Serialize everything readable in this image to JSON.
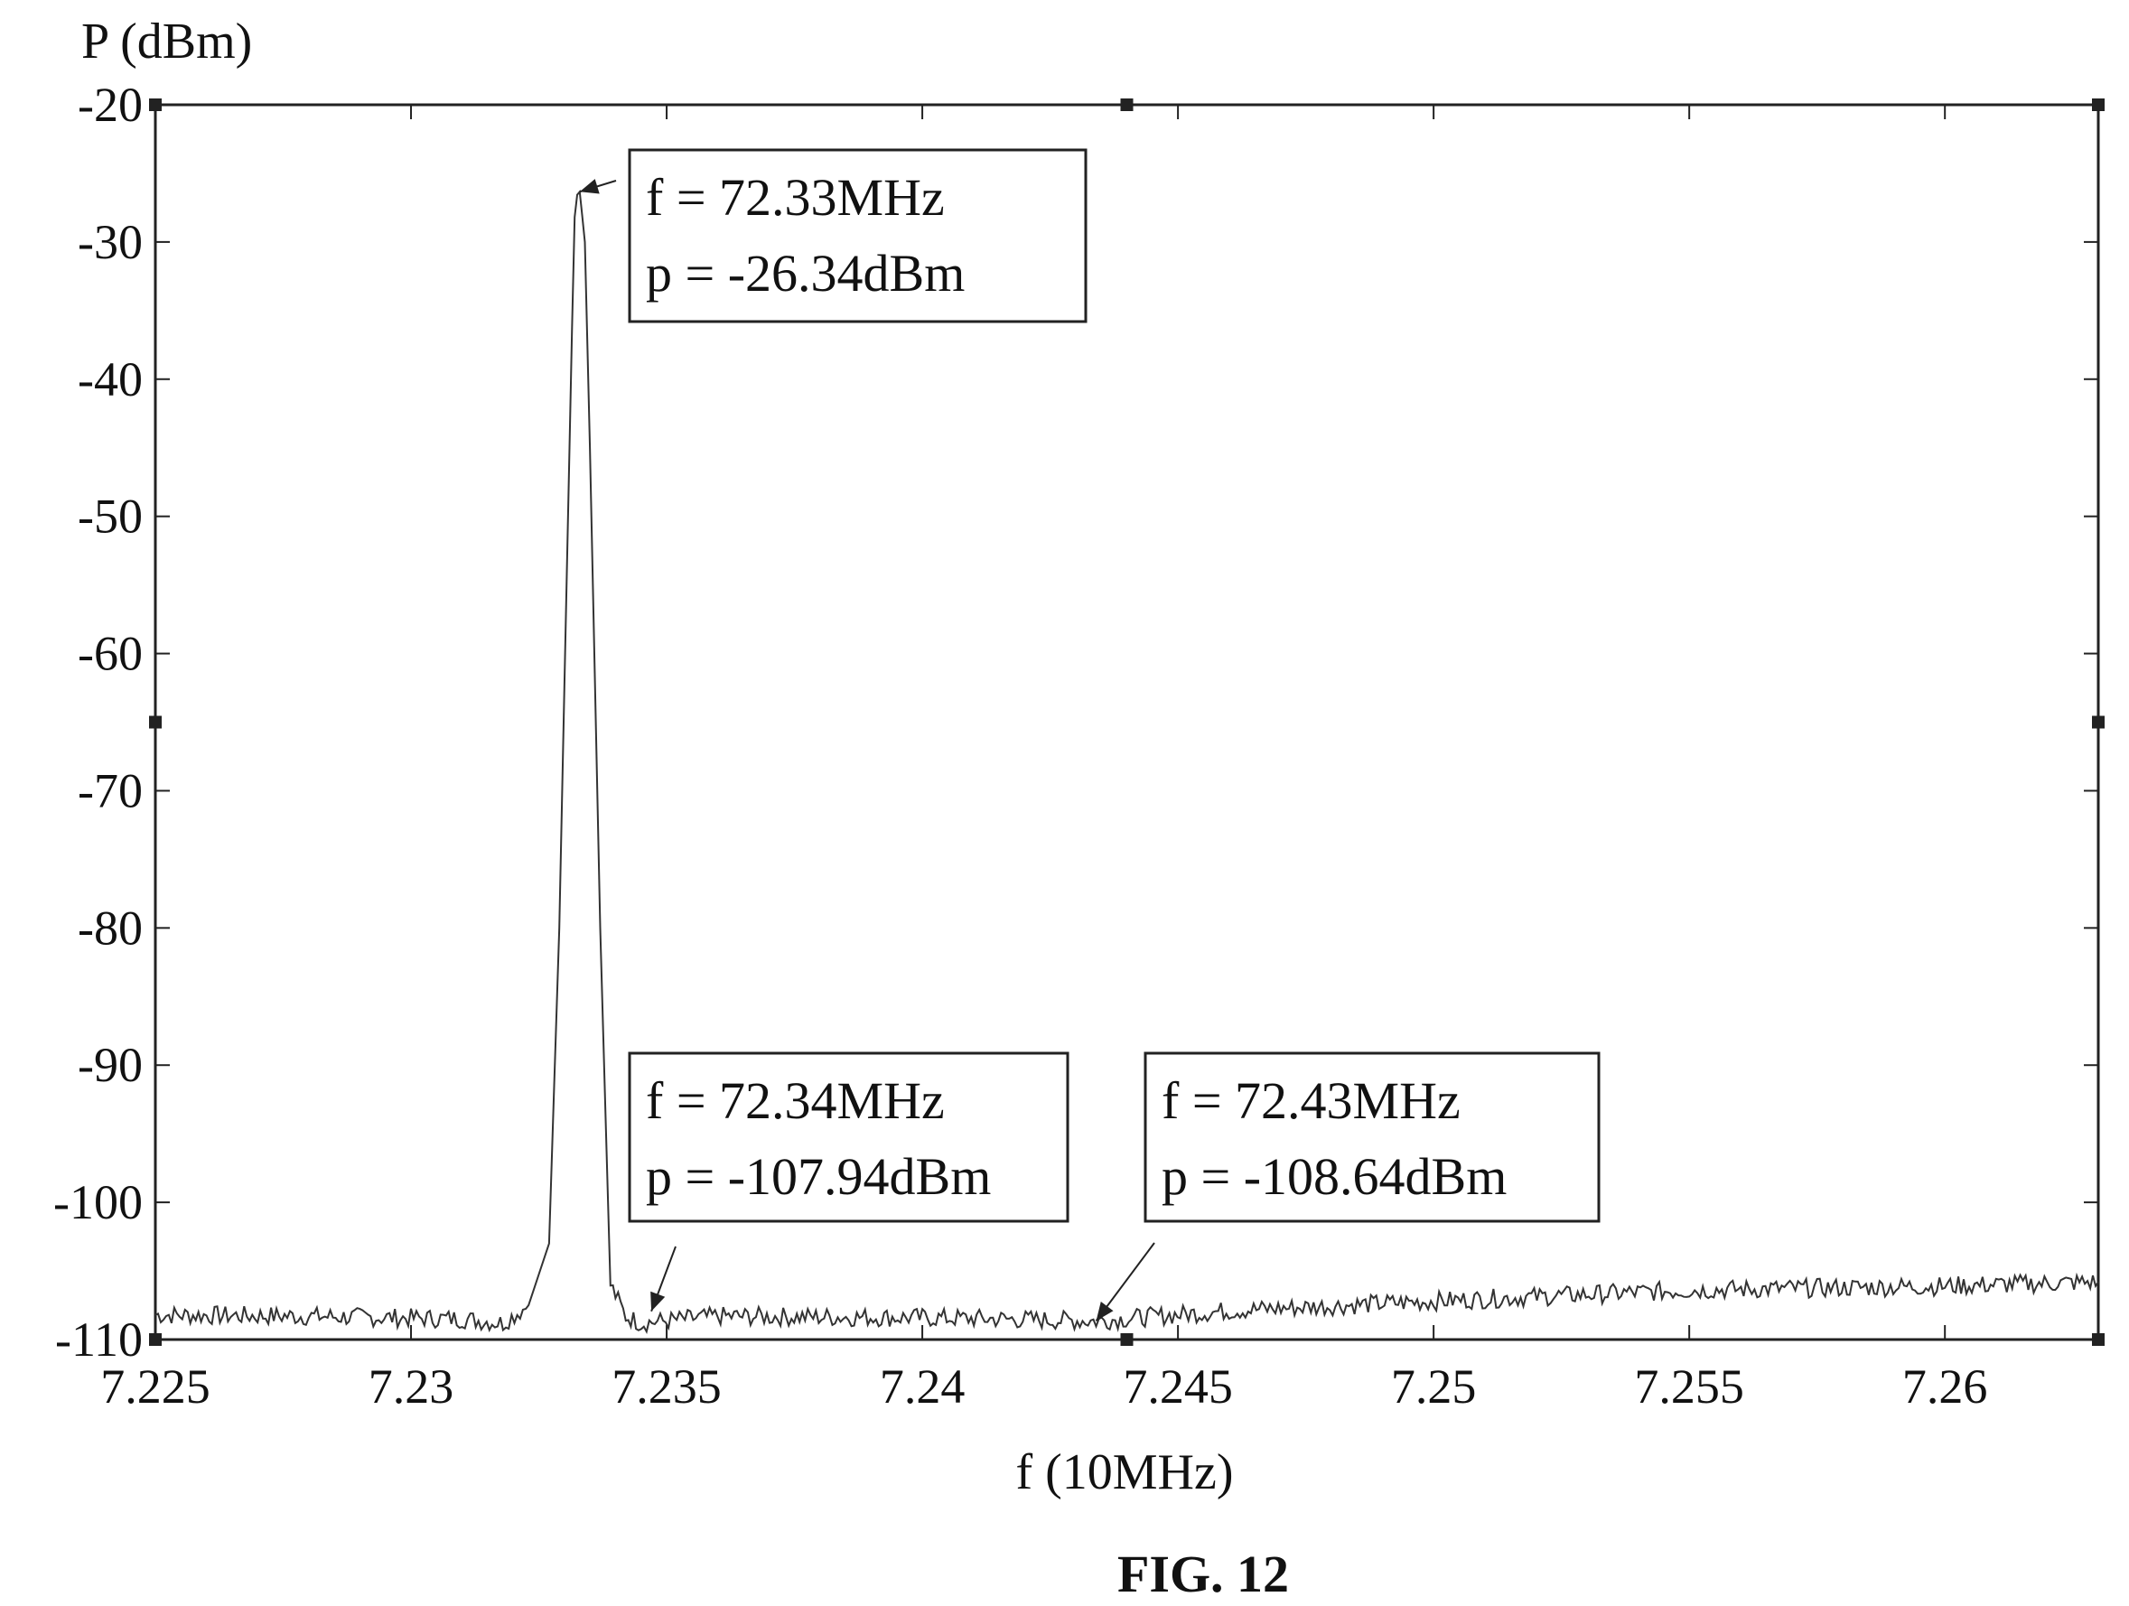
{
  "chart_data": {
    "type": "line",
    "title": "",
    "xlabel": "f (10MHz)",
    "ylabel": "P (dBm)",
    "xlim": [
      7.225,
      7.263
    ],
    "ylim": [
      -110,
      -20
    ],
    "xticks": [
      7.225,
      7.23,
      7.235,
      7.24,
      7.245,
      7.25,
      7.255,
      7.26
    ],
    "xtick_labels": [
      "7.225",
      "7.23",
      "7.235",
      "7.24",
      "7.245",
      "7.25",
      "7.255",
      "7.26"
    ],
    "yticks": [
      -20,
      -30,
      -40,
      -50,
      -60,
      -70,
      -80,
      -90,
      -100,
      -110
    ],
    "ytick_labels": [
      "-20",
      "-30",
      "-40",
      "-50",
      "-60",
      "-70",
      "-80",
      "-90",
      "-100",
      "-110"
    ],
    "grid": false,
    "series": [
      {
        "x": [
          7.225,
          7.228,
          7.231,
          7.2318,
          7.2323,
          7.2327,
          7.2329,
          7.2331,
          7.2332,
          7.2333,
          7.2334,
          7.2335,
          7.2337,
          7.2339,
          7.2342,
          7.2345,
          7.236,
          7.24,
          7.2434,
          7.246,
          7.25,
          7.255,
          7.26,
          7.263
        ],
        "y": [
          -108.2,
          -108.3,
          -108.5,
          -108.8,
          -107.5,
          -103,
          -80,
          -45,
          -27.5,
          -26.34,
          -30,
          -45,
          -80,
          -106,
          -108.3,
          -108.8,
          -108.3,
          -108.4,
          -108.64,
          -107.9,
          -107.2,
          -106.4,
          -106.1,
          -105.8
        ]
      }
    ],
    "annotations": [
      {
        "line1": "f = 72.33MHz",
        "line2": "p = -26.34dBm",
        "x": 7.2333,
        "y": -26.34
      },
      {
        "line1": "f = 72.34MHz",
        "line2": "p = -107.94dBm",
        "x": 7.2347,
        "y": -107.94
      },
      {
        "line1": "f = 72.43MHz",
        "line2": "p = -108.64dBm",
        "x": 7.2434,
        "y": -108.64
      }
    ],
    "figure_label": "FIG. 12"
  }
}
